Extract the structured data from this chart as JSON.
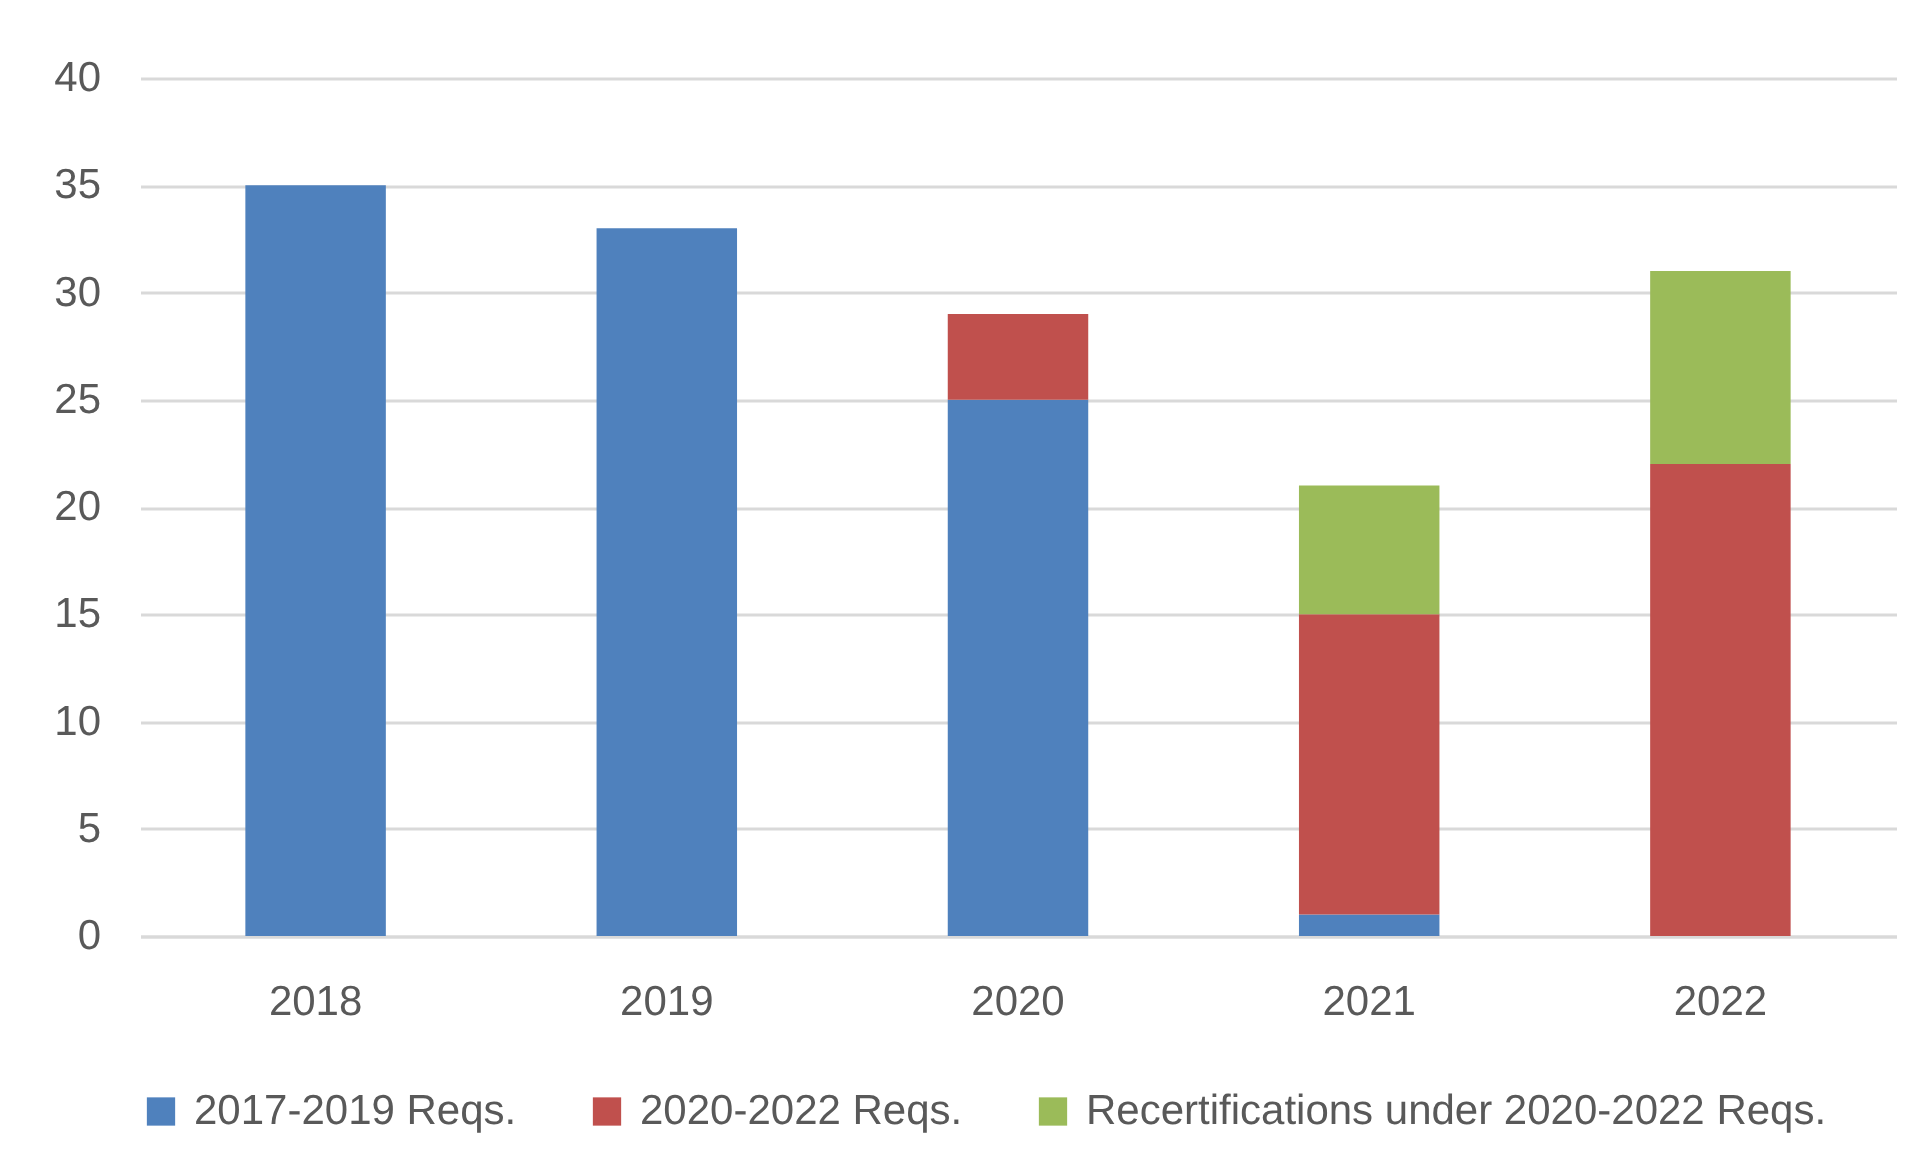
{
  "chart_data": {
    "type": "bar",
    "stacked": true,
    "categories": [
      "2018",
      "2019",
      "2020",
      "2021",
      "2022"
    ],
    "series": [
      {
        "name": "2017-2019 Reqs.",
        "color": "#4f81bd",
        "values": [
          35,
          33,
          25,
          1,
          null
        ]
      },
      {
        "name": "2020-2022 Reqs.",
        "color": "#c0504d",
        "values": [
          null,
          null,
          4,
          14,
          22
        ]
      },
      {
        "name": "Recertifications under 2020-2022 Reqs.",
        "color": "#9bbb59",
        "values": [
          null,
          null,
          null,
          6,
          9
        ]
      }
    ],
    "ylim": [
      0,
      40
    ],
    "yticks": [
      0,
      5,
      10,
      15,
      20,
      25,
      30,
      35,
      40
    ],
    "grid": "y",
    "legend": "bottom"
  }
}
